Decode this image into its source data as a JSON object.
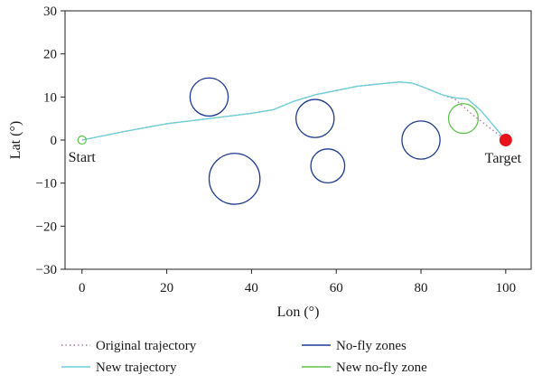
{
  "chart_data": {
    "type": "line",
    "xlabel": "Lon (°)",
    "ylabel": "Lat (°)",
    "xlim": [
      -4,
      106
    ],
    "ylim": [
      -30,
      30
    ],
    "xticks": [
      0,
      20,
      40,
      60,
      80,
      100
    ],
    "yticks": [
      -30,
      -20,
      -10,
      0,
      10,
      20,
      30
    ],
    "x_tick_labels": [
      "0",
      "20",
      "40",
      "60",
      "80",
      "100"
    ],
    "y_tick_labels": [
      "−30",
      "−20",
      "−10",
      "0",
      "10",
      "20",
      "30"
    ],
    "grid": false,
    "legend_position": "bottom",
    "series": [
      {
        "name": "Original trajectory",
        "style": "dotted",
        "color": "#b07aa0",
        "x": [
          0,
          10,
          20,
          30,
          40,
          45,
          50,
          55,
          60,
          65,
          70,
          75,
          78,
          80,
          85,
          88,
          92,
          96,
          100
        ],
        "y": [
          0,
          2,
          3.8,
          5,
          6.2,
          7,
          9,
          10.5,
          11.5,
          12.5,
          13,
          13.5,
          13.2,
          12.5,
          10.5,
          9.5,
          6,
          3,
          0
        ]
      },
      {
        "name": "New trajectory",
        "style": "solid",
        "color": "#6dcfd6",
        "x": [
          0,
          10,
          20,
          30,
          40,
          45,
          50,
          55,
          60,
          65,
          70,
          75,
          78,
          80,
          85,
          88,
          91,
          94,
          97,
          100
        ],
        "y": [
          0,
          2,
          3.8,
          5,
          6.2,
          7,
          9,
          10.5,
          11.5,
          12.5,
          13,
          13.5,
          13.2,
          12.5,
          10.5,
          9.8,
          9.5,
          7,
          3.5,
          0
        ]
      }
    ],
    "zones": {
      "name": "No-fly zones",
      "color": "#1f3a93",
      "circles": [
        {
          "cx": 30,
          "cy": 10,
          "r": 4.5
        },
        {
          "cx": 55,
          "cy": 5,
          "r": 4.5
        },
        {
          "cx": 58,
          "cy": -6,
          "r": 4
        },
        {
          "cx": 36,
          "cy": -9,
          "r": 6
        },
        {
          "cx": 80,
          "cy": 0,
          "r": 4.5
        }
      ]
    },
    "new_zone": {
      "name": "New no-fly zone",
      "color": "#5cc24a",
      "circles": [
        {
          "cx": 90,
          "cy": 5,
          "r": 3.5
        }
      ]
    },
    "start": {
      "label": "Start",
      "x": 0,
      "y": 0,
      "color": "#5cc24a"
    },
    "target": {
      "label": "Target",
      "x": 100,
      "y": 0,
      "color": "#e8141c"
    }
  }
}
